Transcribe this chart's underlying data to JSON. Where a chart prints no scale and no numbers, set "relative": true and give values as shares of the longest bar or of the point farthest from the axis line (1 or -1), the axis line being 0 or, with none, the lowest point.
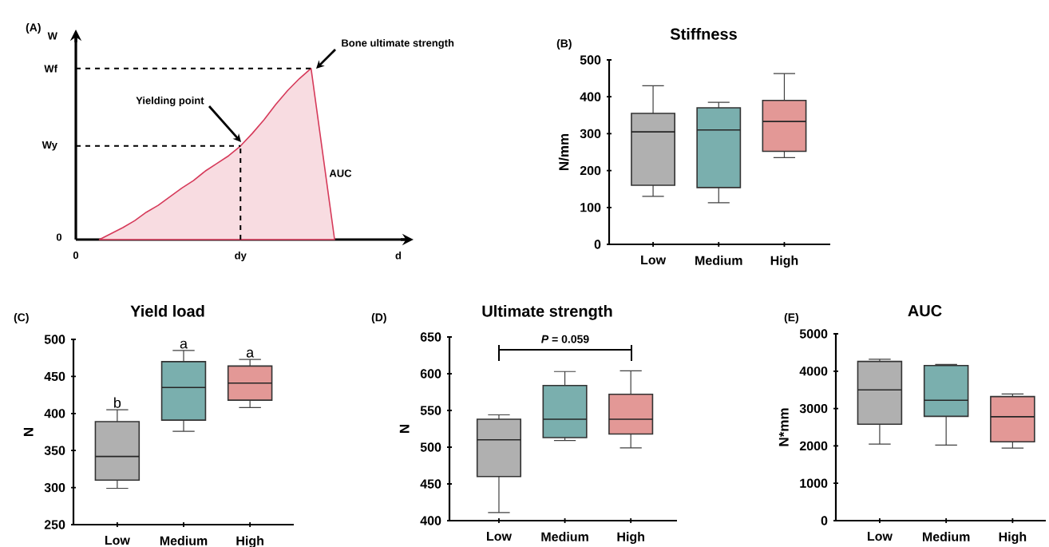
{
  "chart_data": [
    {
      "type": "area",
      "relative": true,
      "color": "#d63a5a",
      "xlabel": "d",
      "ylabel": "W",
      "categories": [
        "0",
        null,
        null,
        null,
        null,
        null,
        null,
        null,
        null,
        null,
        null,
        null,
        null,
        null,
        "dy",
        null,
        null,
        null,
        null,
        null,
        null,
        null,
        null
      ],
      "values": [
        null,
        null,
        0,
        0.035,
        0.07,
        0.11,
        0.16,
        0.2,
        0.25,
        0.3,
        0.345,
        0.4,
        0.445,
        0.49,
        0.547,
        0.62,
        0.7,
        0.79,
        0.87,
        0.94,
        1,
        0.5,
        0
      ],
      "ref_lines": [
        {
          "axis": "y",
          "value": 1,
          "label": "Wf",
          "line_style": "dashed"
        },
        {
          "axis": "y",
          "value": 0.547,
          "label": "Wy",
          "line_style": "dashed"
        },
        {
          "axis": "x",
          "value": "dy",
          "line_style": "dashed"
        }
      ],
      "annotations": [
        "(A)",
        "Yielding point",
        "Bone ultimate strength",
        "AUC",
        "0"
      ]
    },
    {
      "type": "box",
      "title": "Stiffness",
      "ylabel": "N/mm",
      "categories": [
        "Low",
        "Medium",
        "High"
      ],
      "colors": [
        "#b0b0b0",
        "#7aafae",
        "#e39896"
      ],
      "ylim": [
        0,
        500
      ],
      "yticks": [
        0,
        100,
        200,
        300,
        400,
        500
      ],
      "boxes": [
        {
          "low": 130,
          "q1": 160,
          "median": 305,
          "q3": 355,
          "high": 430
        },
        {
          "low": 113,
          "q1": 154,
          "median": 310,
          "q3": 370,
          "high": 385
        },
        {
          "low": 235,
          "q1": 252,
          "median": 333,
          "q3": 390,
          "high": 463
        }
      ],
      "annotations": [
        "(B)"
      ]
    },
    {
      "type": "box",
      "title": "Yield load",
      "ylabel": "N",
      "categories": [
        "Low",
        "Medium",
        "High"
      ],
      "colors": [
        "#b0b0b0",
        "#7aafae",
        "#e39896"
      ],
      "ylim": [
        250,
        500
      ],
      "yticks": [
        250,
        300,
        350,
        400,
        450,
        500
      ],
      "boxes": [
        {
          "low": 299,
          "q1": 310,
          "median": 342,
          "q3": 389,
          "high": 405
        },
        {
          "low": 376,
          "q1": 391,
          "median": 435,
          "q3": 470,
          "high": 485
        },
        {
          "low": 408,
          "q1": 418,
          "median": 441,
          "q3": 464,
          "high": 473
        }
      ],
      "annotations": [
        "(C)",
        {
          "text": "b",
          "x": "Low",
          "y": 405
        },
        {
          "text": "a",
          "x": "Medium",
          "y": 485
        },
        {
          "text": "a",
          "x": "High",
          "y": 473
        }
      ]
    },
    {
      "type": "box",
      "title": "Ultimate strength",
      "ylabel": "N",
      "categories": [
        "Low",
        "Medium",
        "High"
      ],
      "colors": [
        "#b0b0b0",
        "#7aafae",
        "#e39896"
      ],
      "ylim": [
        400,
        650
      ],
      "yticks": [
        400,
        450,
        500,
        550,
        600,
        650
      ],
      "boxes": [
        {
          "low": 411,
          "q1": 460,
          "median": 510,
          "q3": 538,
          "high": 544
        },
        {
          "low": 509,
          "q1": 513,
          "median": 538,
          "q3": 584,
          "high": 603
        },
        {
          "low": 499,
          "q1": 518,
          "median": 538,
          "q3": 572,
          "high": 604
        }
      ],
      "annotations": [
        "(D)",
        "*P* = 0.059"
      ]
    },
    {
      "type": "box",
      "title": "AUC",
      "ylabel": "N*mm",
      "categories": [
        "Low",
        "Medium",
        "High"
      ],
      "colors": [
        "#b0b0b0",
        "#7aafae",
        "#e39896"
      ],
      "ylim": [
        0,
        5000
      ],
      "yticks": [
        0,
        1000,
        2000,
        3000,
        4000,
        5000
      ],
      "boxes": [
        {
          "low": 2050,
          "q1": 2580,
          "median": 3500,
          "q3": 4260,
          "high": 4320
        },
        {
          "low": 2020,
          "q1": 2790,
          "median": 3220,
          "q3": 4150,
          "high": 4180
        },
        {
          "low": 1940,
          "q1": 2110,
          "median": 2780,
          "q3": 3320,
          "high": 3390
        }
      ],
      "annotations": [
        "(E)"
      ]
    }
  ]
}
